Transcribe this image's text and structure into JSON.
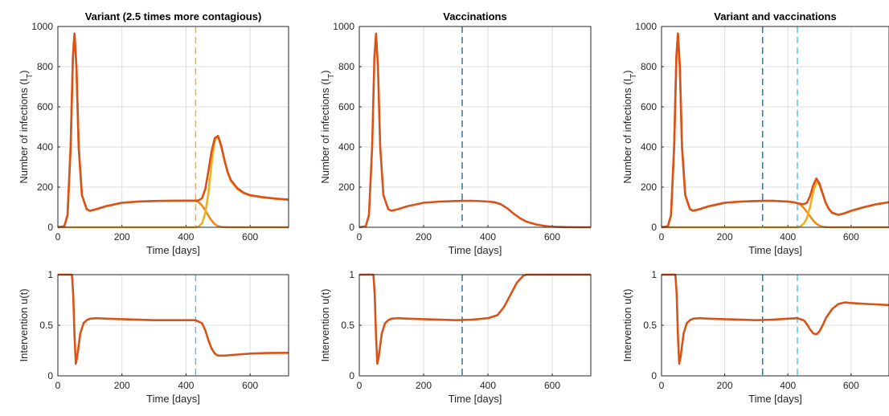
{
  "colors": {
    "total": "#D95319",
    "variant": "#EDB120",
    "original": "#F08A1E",
    "dash_variant": "#4DBEEE",
    "dash_vacc": "#2C6B8F",
    "grid": "#DCDCDC",
    "axis": "#262626"
  },
  "chart_data": [
    {
      "type": "line",
      "title": "Variant (2.5 times more contagious)",
      "xlabel": "Time [days]",
      "ylabel": "Number of infections (I",
      "ylabel_sub": "T",
      "ylabel_end": ")",
      "xlim": [
        0,
        720
      ],
      "ylim": [
        0,
        1000
      ],
      "xticks": [
        "0",
        "200",
        "400",
        "600"
      ],
      "yticks": [
        "0",
        "200",
        "400",
        "600",
        "800",
        "1000"
      ],
      "vlines": [
        {
          "x": 430,
          "color": "variant"
        }
      ],
      "series": [
        {
          "color": "original",
          "x": [
            0,
            20,
            30,
            40,
            47,
            52,
            58,
            65,
            75,
            90,
            100,
            120,
            150,
            200,
            250,
            300,
            350,
            400,
            420,
            430,
            440,
            450,
            460,
            470,
            480,
            490,
            500,
            510,
            520,
            540,
            560,
            600,
            650,
            700,
            720
          ],
          "y": [
            0,
            5,
            60,
            400,
            850,
            965,
            800,
            400,
            160,
            90,
            82,
            90,
            105,
            122,
            128,
            131,
            132,
            133,
            133,
            132,
            125,
            108,
            85,
            58,
            33,
            15,
            6,
            2,
            1,
            0,
            0,
            0,
            0,
            0,
            0
          ]
        },
        {
          "color": "variant",
          "x": [
            0,
            430,
            440,
            450,
            460,
            470,
            480,
            490,
            500,
            510,
            520,
            530,
            540,
            560,
            580,
            600,
            640,
            680,
            720
          ],
          "y": [
            0,
            0,
            5,
            20,
            70,
            170,
            320,
            435,
            450,
            400,
            330,
            270,
            230,
            190,
            170,
            158,
            148,
            142,
            137
          ]
        },
        {
          "color": "total",
          "x": [
            0,
            20,
            30,
            40,
            47,
            52,
            58,
            65,
            75,
            90,
            100,
            120,
            150,
            200,
            250,
            300,
            350,
            400,
            420,
            430,
            440,
            450,
            460,
            470,
            480,
            490,
            500,
            510,
            520,
            530,
            540,
            560,
            580,
            600,
            640,
            680,
            720
          ],
          "y": [
            0,
            5,
            60,
            400,
            850,
            965,
            800,
            400,
            160,
            90,
            82,
            90,
            105,
            122,
            128,
            131,
            132,
            133,
            133,
            132,
            135,
            145,
            190,
            280,
            380,
            445,
            455,
            405,
            335,
            275,
            235,
            195,
            172,
            160,
            150,
            143,
            138
          ]
        }
      ]
    },
    {
      "type": "line",
      "title": "Vaccinations",
      "xlabel": "Time [days]",
      "ylabel": "Number of infections (I",
      "ylabel_sub": "T",
      "ylabel_end": ")",
      "xlim": [
        0,
        720
      ],
      "ylim": [
        0,
        1000
      ],
      "xticks": [
        "0",
        "200",
        "400",
        "600"
      ],
      "yticks": [
        "0",
        "200",
        "400",
        "600",
        "800",
        "1000"
      ],
      "vlines": [
        {
          "x": 320,
          "color": "dash_vacc"
        }
      ],
      "series": [
        {
          "color": "total",
          "x": [
            0,
            20,
            30,
            40,
            47,
            52,
            58,
            65,
            75,
            90,
            100,
            120,
            150,
            200,
            250,
            300,
            350,
            380,
            400,
            420,
            440,
            460,
            480,
            500,
            520,
            550,
            580,
            600,
            640,
            680,
            720
          ],
          "y": [
            0,
            5,
            60,
            400,
            850,
            965,
            800,
            400,
            160,
            90,
            82,
            90,
            105,
            122,
            128,
            131,
            132,
            130,
            128,
            125,
            115,
            95,
            68,
            45,
            28,
            14,
            6,
            3,
            1,
            0,
            0
          ]
        }
      ]
    },
    {
      "type": "line",
      "title": "Variant and vaccinations",
      "xlabel": "Time [days]",
      "ylabel": "Number of infections (I",
      "ylabel_sub": "T",
      "ylabel_end": ")",
      "xlim": [
        0,
        720
      ],
      "ylim": [
        0,
        1000
      ],
      "xticks": [
        "0",
        "200",
        "400",
        "600"
      ],
      "yticks": [
        "0",
        "200",
        "400",
        "600",
        "800",
        "1000"
      ],
      "vlines": [
        {
          "x": 320,
          "color": "dash_vacc"
        },
        {
          "x": 430,
          "color": "dash_variant"
        }
      ],
      "series": [
        {
          "color": "original",
          "x": [
            0,
            20,
            30,
            40,
            47,
            52,
            58,
            65,
            75,
            90,
            100,
            120,
            150,
            200,
            250,
            300,
            350,
            400,
            420,
            430,
            440,
            450,
            460,
            470,
            480,
            490,
            500,
            510,
            520,
            540,
            560,
            600,
            650,
            720
          ],
          "y": [
            0,
            5,
            60,
            400,
            850,
            965,
            800,
            400,
            160,
            90,
            82,
            90,
            105,
            122,
            128,
            131,
            132,
            128,
            124,
            120,
            112,
            97,
            77,
            55,
            34,
            18,
            8,
            3,
            1,
            0,
            0,
            0,
            0,
            0
          ]
        },
        {
          "color": "variant",
          "x": [
            0,
            430,
            440,
            450,
            460,
            470,
            480,
            490,
            500,
            510,
            520,
            530,
            540,
            560,
            580,
            600,
            640,
            680,
            720
          ],
          "y": [
            0,
            0,
            5,
            18,
            45,
            100,
            175,
            225,
            210,
            165,
            120,
            90,
            72,
            62,
            70,
            82,
            100,
            115,
            125
          ]
        },
        {
          "color": "total",
          "x": [
            0,
            20,
            30,
            40,
            47,
            52,
            58,
            65,
            75,
            90,
            100,
            120,
            150,
            200,
            250,
            300,
            350,
            400,
            420,
            430,
            440,
            450,
            460,
            470,
            480,
            490,
            500,
            510,
            520,
            530,
            540,
            560,
            580,
            600,
            640,
            680,
            720
          ],
          "y": [
            0,
            5,
            60,
            400,
            850,
            965,
            800,
            400,
            160,
            90,
            82,
            90,
            105,
            122,
            128,
            131,
            132,
            128,
            124,
            120,
            117,
            115,
            122,
            155,
            209,
            243,
            218,
            168,
            121,
            90,
            72,
            62,
            70,
            82,
            100,
            115,
            125
          ]
        }
      ]
    },
    {
      "type": "line",
      "title": "",
      "xlabel": "Time [days]",
      "ylabel": "Intervention u(t)",
      "xlim": [
        0,
        720
      ],
      "ylim": [
        0,
        1
      ],
      "xticks": [
        "0",
        "200",
        "400",
        "600"
      ],
      "yticks": [
        "0",
        "0.5",
        "1"
      ],
      "vlines": [
        {
          "x": 430,
          "color": "dash_variant"
        }
      ],
      "series": [
        {
          "color": "total",
          "x": [
            0,
            44,
            48,
            52,
            56,
            60,
            70,
            80,
            90,
            100,
            120,
            150,
            200,
            300,
            400,
            430,
            450,
            460,
            470,
            480,
            490,
            500,
            520,
            560,
            600,
            650,
            720
          ],
          "y": [
            1,
            1,
            0.8,
            0.4,
            0.12,
            0.18,
            0.42,
            0.52,
            0.55,
            0.565,
            0.57,
            0.565,
            0.56,
            0.55,
            0.55,
            0.55,
            0.52,
            0.45,
            0.35,
            0.27,
            0.22,
            0.2,
            0.2,
            0.21,
            0.22,
            0.225,
            0.228
          ]
        }
      ]
    },
    {
      "type": "line",
      "title": "",
      "xlabel": "Time [days]",
      "ylabel": "Intervention u(t)",
      "xlim": [
        0,
        720
      ],
      "ylim": [
        0,
        1
      ],
      "xticks": [
        "0",
        "200",
        "400",
        "600"
      ],
      "yticks": [
        "0",
        "0.5",
        "1"
      ],
      "vlines": [
        {
          "x": 320,
          "color": "dash_vacc"
        }
      ],
      "series": [
        {
          "color": "total",
          "x": [
            0,
            44,
            48,
            52,
            56,
            60,
            70,
            80,
            90,
            100,
            120,
            150,
            200,
            300,
            350,
            400,
            430,
            450,
            470,
            490,
            510,
            520,
            530,
            600,
            720
          ],
          "y": [
            1,
            1,
            0.8,
            0.4,
            0.12,
            0.18,
            0.42,
            0.52,
            0.55,
            0.565,
            0.57,
            0.565,
            0.56,
            0.55,
            0.555,
            0.57,
            0.6,
            0.68,
            0.8,
            0.92,
            0.99,
            1,
            1,
            1,
            1
          ]
        }
      ]
    },
    {
      "type": "line",
      "title": "",
      "xlabel": "Time [days]",
      "ylabel": "Intervention u(t)",
      "xlim": [
        0,
        720
      ],
      "ylim": [
        0,
        1
      ],
      "xticks": [
        "0",
        "200",
        "400",
        "600"
      ],
      "yticks": [
        "0",
        "0.5",
        "1"
      ],
      "vlines": [
        {
          "x": 320,
          "color": "dash_vacc"
        },
        {
          "x": 430,
          "color": "dash_variant"
        }
      ],
      "series": [
        {
          "color": "total",
          "x": [
            0,
            44,
            48,
            52,
            56,
            60,
            70,
            80,
            90,
            100,
            120,
            150,
            200,
            300,
            350,
            400,
            430,
            450,
            460,
            470,
            480,
            490,
            500,
            510,
            520,
            540,
            560,
            580,
            600,
            650,
            720
          ],
          "y": [
            1,
            1,
            0.8,
            0.4,
            0.12,
            0.18,
            0.42,
            0.52,
            0.55,
            0.565,
            0.57,
            0.565,
            0.56,
            0.55,
            0.555,
            0.565,
            0.57,
            0.55,
            0.51,
            0.46,
            0.42,
            0.41,
            0.44,
            0.5,
            0.57,
            0.66,
            0.71,
            0.725,
            0.72,
            0.71,
            0.7
          ]
        }
      ]
    }
  ]
}
